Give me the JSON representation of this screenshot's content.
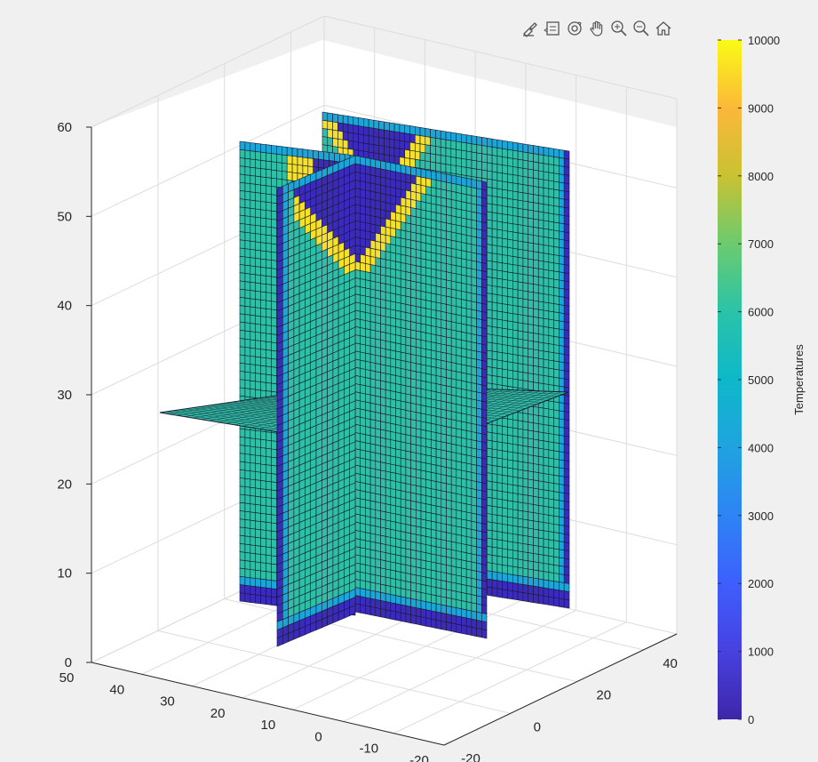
{
  "toolbar": {
    "icons": [
      "brush-icon",
      "data-tips-icon",
      "rotate-3d-icon",
      "pan-icon",
      "zoom-in-icon",
      "zoom-out-icon",
      "home-icon"
    ]
  },
  "colors": {
    "background": "#f0f0f0",
    "axes_face": "#ffffff",
    "grid": "#dcdcdc",
    "slice_fill": "#2fbfa6",
    "slice_edge": "#1a1a2e",
    "cold": "#3b2bbd",
    "warm": "#1aa6d8",
    "hot": "#f5e02a"
  },
  "chart_data": {
    "type": "slice-3d",
    "title": "",
    "colorbar": {
      "label": "Temperatures",
      "range": [
        0,
        10000
      ],
      "ticks": [
        0,
        1000,
        2000,
        3000,
        4000,
        5000,
        6000,
        7000,
        8000,
        9000,
        10000
      ],
      "tick_labels": [
        "0",
        "1000",
        "2000",
        "3000",
        "4000",
        "5000",
        "6000",
        "7000",
        "8000",
        "9000",
        "10000"
      ],
      "colormap": "parula"
    },
    "axes": {
      "x": {
        "range": [
          -20,
          50
        ],
        "ticks": [
          50,
          40,
          30,
          20,
          10,
          0,
          -10,
          -20
        ],
        "tick_labels": [
          "50",
          "40",
          "30",
          "20",
          "10",
          "0",
          "-10",
          "-20"
        ]
      },
      "y": {
        "range": [
          -20,
          50
        ],
        "ticks": [
          -20,
          0,
          20,
          40
        ],
        "tick_labels": [
          "-20",
          "0",
          "20",
          "40"
        ]
      },
      "z": {
        "range": [
          0,
          60
        ],
        "ticks": [
          0,
          10,
          20,
          30,
          40,
          50,
          60
        ],
        "tick_labels": [
          "0",
          "10",
          "20",
          "30",
          "40",
          "50",
          "60"
        ]
      },
      "grid": true
    },
    "slices": [
      {
        "plane": "x",
        "at": 0,
        "dominant_value": 5200,
        "v_band_value": 9500,
        "interior_value": 500
      },
      {
        "plane": "y",
        "at": 0,
        "dominant_value": 5200,
        "v_band_value": 9500,
        "interior_value": 500
      },
      {
        "plane": "z",
        "at": 29,
        "dominant_value": 5200
      }
    ]
  }
}
